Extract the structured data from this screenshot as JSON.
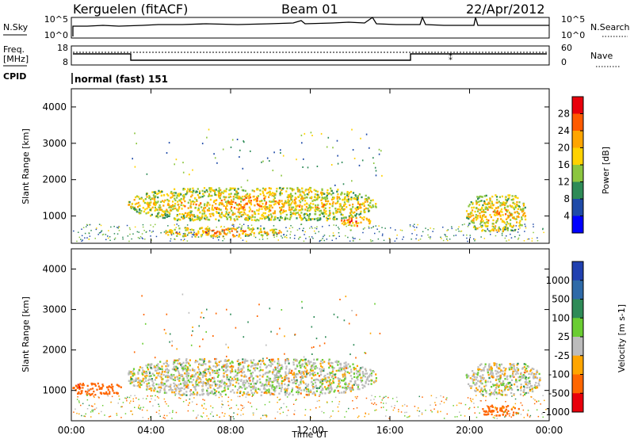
{
  "header": {
    "station": "Kerguelen (fitACF)",
    "beam": "Beam 01",
    "date": "22/Apr/2012"
  },
  "strip_panels": {
    "nsky": {
      "label": "N.Sky",
      "right_label": "N.Search",
      "ticks_left": [
        "10^5",
        "10^0"
      ],
      "ticks_right": [
        "10^5",
        "10^0"
      ]
    },
    "freq": {
      "label_line1": "Freq.",
      "label_line2": "[MHz]",
      "right_label": "Nave",
      "ticks_left": [
        "18",
        "8"
      ],
      "ticks_right": [
        "60",
        "0"
      ]
    },
    "cpid": {
      "label": "CPID",
      "text": "normal (fast) 151"
    }
  },
  "chart_data": [
    {
      "type": "heatmap",
      "name": "power",
      "ylabel": "Slant Range [km]",
      "xlabel": "",
      "ylim": [
        250,
        4500
      ],
      "yticks": [
        1000,
        2000,
        3000,
        4000
      ],
      "xlim": [
        0,
        24
      ],
      "colorbar": {
        "label": "Power [dB]",
        "ticks": [
          "28",
          "24",
          "20",
          "16",
          "12",
          "8",
          "4"
        ],
        "colors": [
          "#e8000b",
          "#ff5a00",
          "#ffa500",
          "#ffd200",
          "#8cc63f",
          "#2e8b57",
          "#1e4aa8",
          "#0000ff"
        ]
      },
      "echo_regions": [
        {
          "t0": 2.8,
          "t1": 15.3,
          "r0": 900,
          "r1": 1800,
          "level": 22
        },
        {
          "t0": 4.5,
          "t1": 10.5,
          "r0": 450,
          "r1": 700,
          "level": 24
        },
        {
          "t0": 13.5,
          "t1": 15.0,
          "r0": 750,
          "r1": 1000,
          "level": 26
        },
        {
          "t0": 19.8,
          "t1": 22.8,
          "r0": 600,
          "r1": 1600,
          "level": 22
        }
      ]
    },
    {
      "type": "heatmap",
      "name": "velocity",
      "ylabel": "Slant Range [km]",
      "xlabel": "Time UT",
      "ylim": [
        250,
        4500
      ],
      "yticks": [
        1000,
        2000,
        3000,
        4000
      ],
      "xlim": [
        0,
        24
      ],
      "xticks": [
        "00:00",
        "04:00",
        "08:00",
        "12:00",
        "16:00",
        "20:00",
        "00:00"
      ],
      "colorbar": {
        "label": "Velocity [m s-1]",
        "ticks": [
          "1000",
          "500",
          "100",
          "25",
          "-25",
          "-100",
          "-500",
          "-1000"
        ],
        "colors": [
          "#2040b0",
          "#2e6aa8",
          "#2e8b57",
          "#6acd32",
          "#bcbcbc",
          "#ffa500",
          "#ff6600",
          "#e8000b"
        ]
      },
      "echo_regions": [
        {
          "t0": 2.8,
          "t1": 15.3,
          "r0": 900,
          "r1": 1800,
          "level": 0
        },
        {
          "t0": 0.0,
          "t1": 2.5,
          "r0": 900,
          "r1": 1200,
          "level": -300
        },
        {
          "t0": 19.8,
          "t1": 23.5,
          "r0": 900,
          "r1": 1700,
          "level": 0
        },
        {
          "t0": 20.5,
          "t1": 22.5,
          "r0": 400,
          "r1": 650,
          "level": -150
        }
      ]
    }
  ]
}
